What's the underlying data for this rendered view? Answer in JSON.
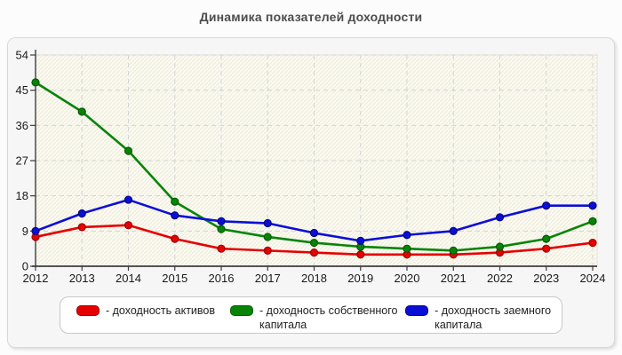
{
  "page": {
    "title": "Динамика показателей доходности"
  },
  "chart_data": {
    "type": "line",
    "title": "Динамика показателей доходности",
    "x": [
      2012,
      2013,
      2014,
      2015,
      2016,
      2017,
      2018,
      2019,
      2020,
      2021,
      2022,
      2023,
      2024
    ],
    "xlabel": "",
    "ylabel": "",
    "ylim": [
      0,
      54
    ],
    "y_ticks": [
      0,
      9,
      18,
      27,
      36,
      45,
      54
    ],
    "grid": true,
    "legend_position": "bottom",
    "series": [
      {
        "name": "доходность активов",
        "color": "#e60000",
        "marker_border": "#9e0000",
        "values": [
          7.5,
          10,
          10.5,
          7,
          4.5,
          4,
          3.5,
          3,
          3,
          3,
          3.5,
          4.5,
          6
        ]
      },
      {
        "name": "доходность собственного капитала",
        "color": "#078407",
        "marker_border": "#045a04",
        "values": [
          47,
          39.5,
          29.5,
          16.5,
          9.5,
          7.5,
          6,
          5,
          4.5,
          4,
          5,
          7,
          11.5
        ]
      },
      {
        "name": "доходность заемного капитала",
        "color": "#0b0fd6",
        "marker_border": "#05087e",
        "values": [
          9,
          13.5,
          17,
          13,
          11.5,
          11,
          8.5,
          6.5,
          8,
          9,
          12.5,
          15.5,
          15.5
        ]
      }
    ]
  },
  "legend": {
    "entries": [
      {
        "label": "- доходность активов",
        "color": "#e60000",
        "border": "#9e0000"
      },
      {
        "label": "- доходность собственного капитала",
        "color": "#078407",
        "border": "#045a04"
      },
      {
        "label": "- доходность заемного капитала",
        "color": "#0b0fd6",
        "border": "#05087e"
      }
    ]
  },
  "colors": {
    "plot_bg": "#fbfaf1",
    "hatch": "#edeadb",
    "gridline": "#d4d4d4",
    "axis": "#3d3d3d",
    "tick_label": "#1a1a1a",
    "panel_bg": "#f6f6f6",
    "legend_bg": "#ffffff"
  }
}
